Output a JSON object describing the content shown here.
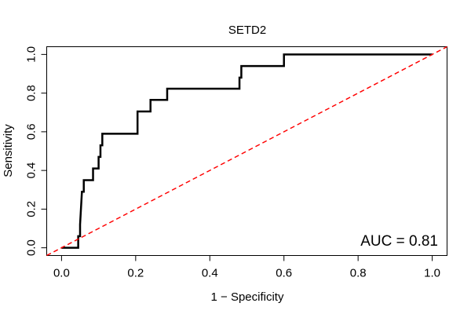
{
  "chart_data": {
    "type": "line",
    "title": "SETD2",
    "xlabel": "1 − Specificity",
    "ylabel": "Sensitivity",
    "xlim": [
      -0.04,
      1.04
    ],
    "ylim": [
      -0.04,
      1.04
    ],
    "x_ticks": [
      0,
      0.2,
      0.4,
      0.6,
      0.8,
      1
    ],
    "y_ticks": [
      0,
      0.2,
      0.4,
      0.6,
      0.8,
      1
    ],
    "x_tick_labels": [
      "0.0",
      "0.2",
      "0.4",
      "0.6",
      "0.8",
      "1.0"
    ],
    "y_tick_labels": [
      "0.0",
      "0.2",
      "0.4",
      "0.6",
      "0.8",
      "1.0"
    ],
    "grid": false,
    "series": [
      {
        "name": "ROC curve",
        "color": "#000000",
        "style": "solid",
        "x": [
          0,
          0.045,
          0.045,
          0.05,
          0.05,
          0.055,
          0.06,
          0.06,
          0.075,
          0.075,
          0.085,
          0.085,
          0.1,
          0.1,
          0.105,
          0.105,
          0.11,
          0.11,
          0.205,
          0.205,
          0.24,
          0.24,
          0.285,
          0.285,
          0.48,
          0.48,
          0.485,
          0.485,
          0.6,
          0.6,
          1.0
        ],
        "y": [
          0,
          0,
          0.06,
          0.06,
          0.12,
          0.29,
          0.29,
          0.35,
          0.35,
          0.35,
          0.35,
          0.41,
          0.41,
          0.47,
          0.47,
          0.53,
          0.53,
          0.59,
          0.59,
          0.705,
          0.705,
          0.765,
          0.765,
          0.823,
          0.823,
          0.88,
          0.88,
          0.94,
          0.94,
          1.0,
          1.0
        ]
      },
      {
        "name": "Chance line",
        "color": "#ff0000",
        "style": "dashed",
        "x": [
          -0.04,
          1.04
        ],
        "y": [
          -0.04,
          1.04
        ]
      }
    ],
    "annotations": [
      {
        "text": "AUC = 0.81",
        "position": "bottom-right"
      }
    ]
  }
}
